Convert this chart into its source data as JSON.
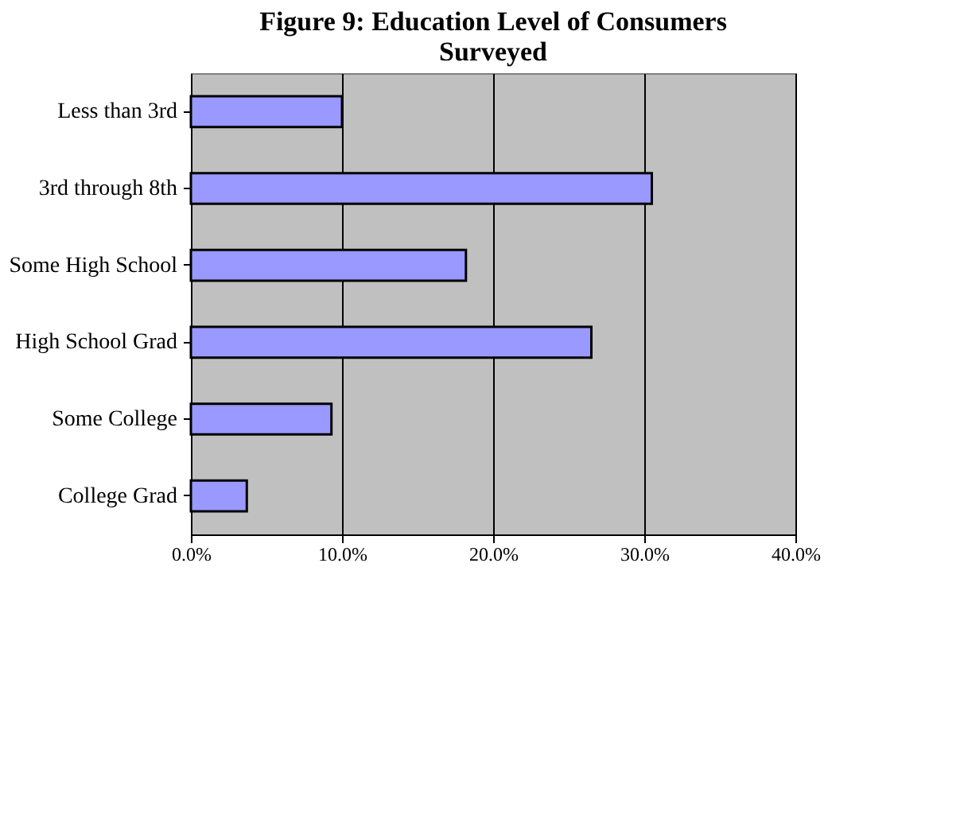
{
  "chart_data": {
    "type": "bar",
    "orientation": "horizontal",
    "title": "Figure 9: Education Level of Consumers\nSurveyed",
    "categories": [
      "Less than 3rd",
      "3rd through 8th",
      "Some High School",
      "High School Grad",
      "Some College",
      "College Grad"
    ],
    "values": [
      0.1,
      0.305,
      0.182,
      0.265,
      0.093,
      0.037
    ],
    "color": "#9999ff",
    "xlim": [
      0,
      0.4
    ],
    "xticks": [
      {
        "value": 0,
        "label": "0.0%"
      },
      {
        "value": 0.1,
        "label": "10.0%"
      },
      {
        "value": 0.2,
        "label": "20.0%"
      },
      {
        "value": 0.3,
        "label": "30.0%"
      },
      {
        "value": 0.4,
        "label": "40.0%"
      }
    ],
    "grid": "x"
  }
}
